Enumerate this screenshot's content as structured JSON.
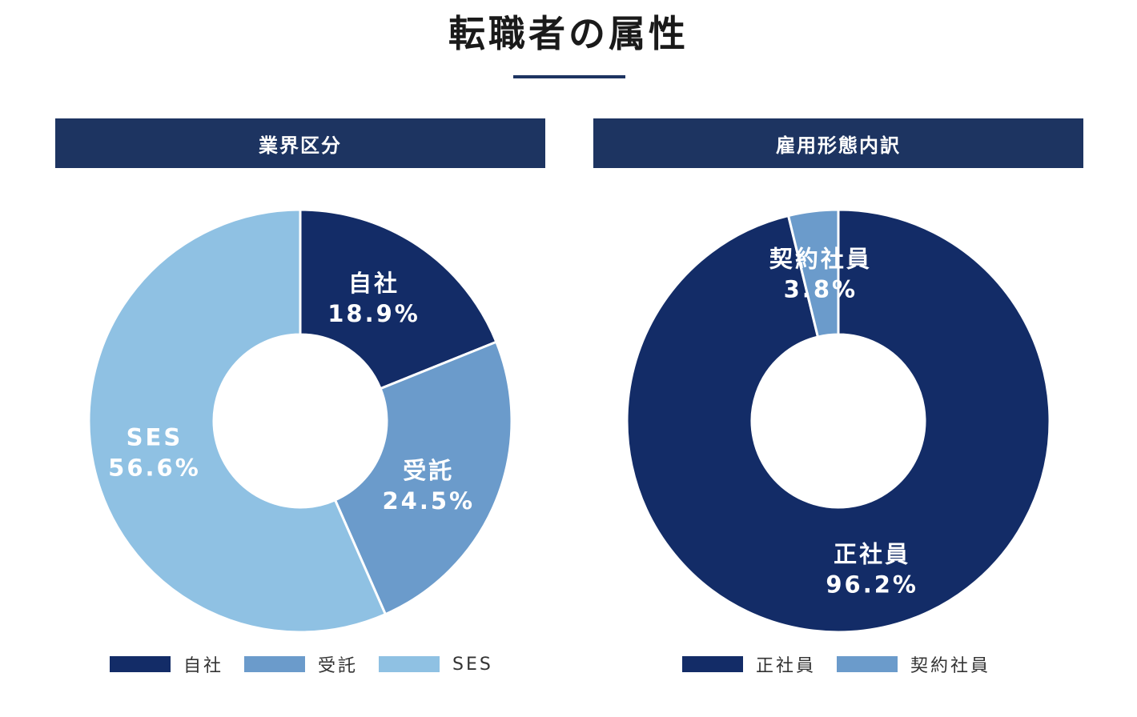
{
  "title": "転職者の属性",
  "chart_data": [
    {
      "type": "pie",
      "subtype": "donut",
      "title": "業界区分",
      "categories": [
        "自社",
        "受託",
        "SES"
      ],
      "values": [
        18.9,
        24.5,
        56.6
      ],
      "value_labels": [
        "18.9%",
        "24.5%",
        "56.6%"
      ],
      "colors": [
        "#132c67",
        "#6b9bcb",
        "#8fc1e3"
      ],
      "legend": "bottom"
    },
    {
      "type": "pie",
      "subtype": "donut",
      "title": "雇用形態内訳",
      "categories": [
        "正社員",
        "契約社員"
      ],
      "values": [
        96.2,
        3.8
      ],
      "value_labels": [
        "96.2%",
        "3.8%"
      ],
      "colors": [
        "#132c67",
        "#6b9bcb"
      ],
      "legend": "bottom"
    }
  ]
}
